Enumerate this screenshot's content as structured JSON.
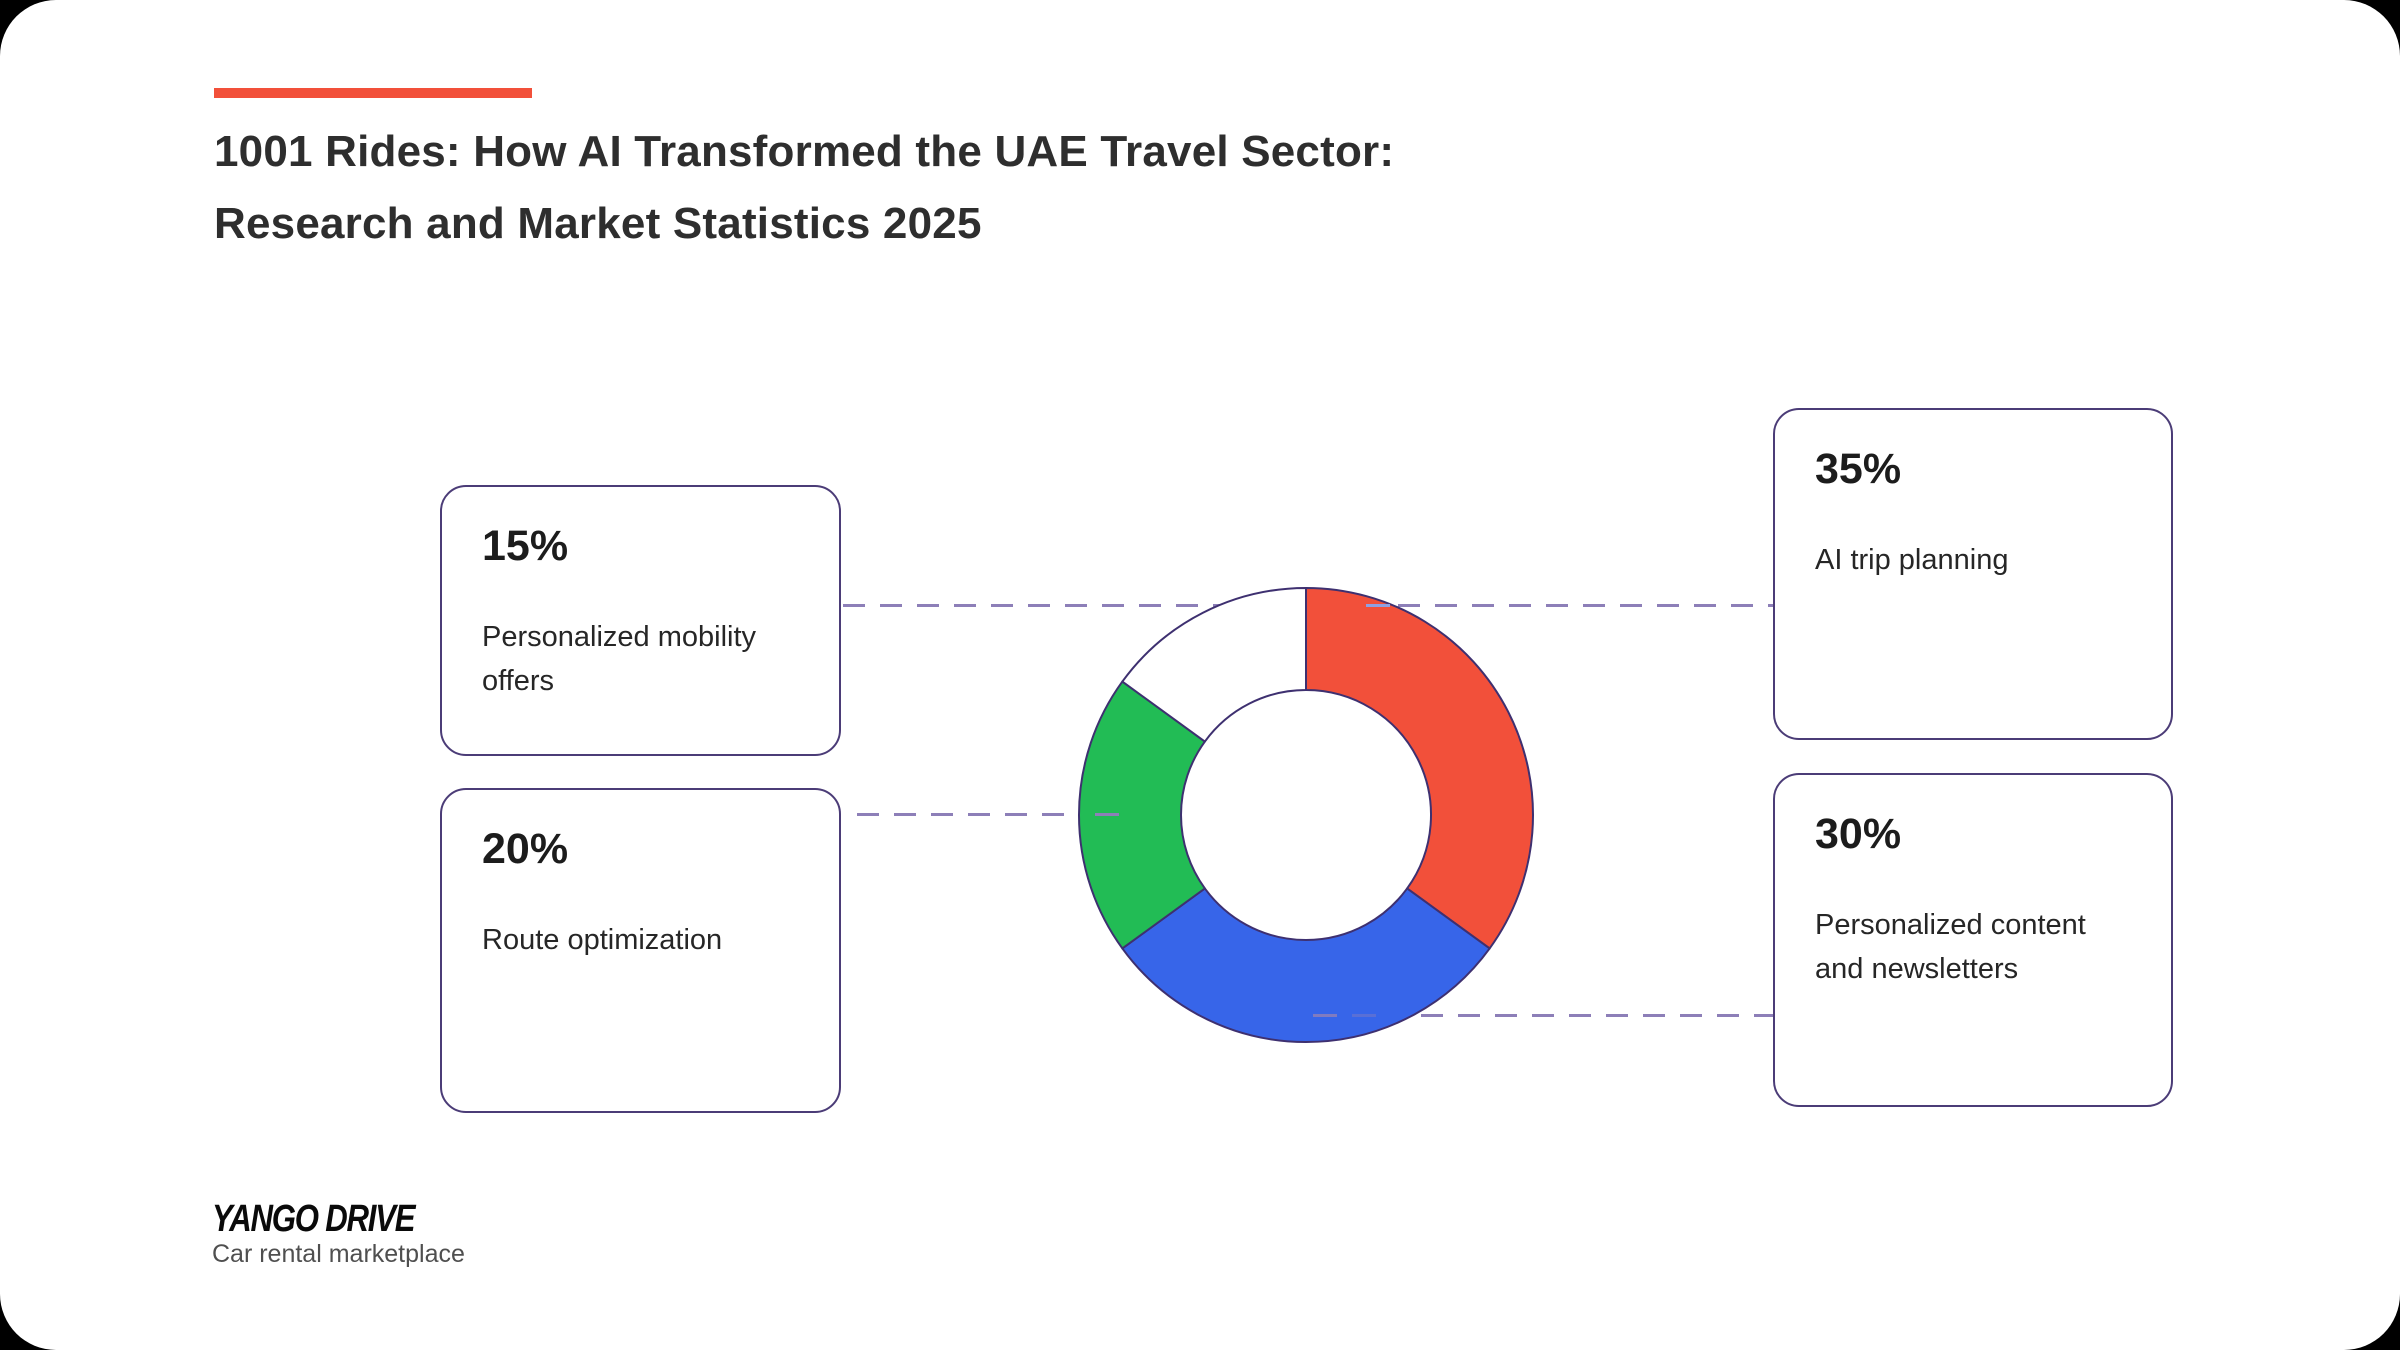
{
  "page": {
    "title_line1": "1001 Rides: How AI Transformed the UAE Travel Sector:",
    "title_line2": "Research and Market Statistics 2025"
  },
  "style": {
    "accent": "#F2503A",
    "outline": "#3E3070",
    "connector": "#8D7FB8",
    "card_border": "#4B3C77",
    "title_color": "#2E2E2E",
    "text": "#262626",
    "subtitle": "#4F4F4F",
    "background": "#000000",
    "canvas": "#FFFFFF"
  },
  "chart_data": {
    "type": "pie",
    "subtype": "donut",
    "title": "1001 Rides: How AI Transformed the UAE Travel Sector: Research and Market Statistics 2025",
    "unit": "%",
    "total": 100,
    "start_angle_deg": 0,
    "clockwise": true,
    "inner_radius": 125,
    "outer_radius": 227,
    "legend_position": "callout-cards",
    "segments": [
      {
        "label": "AI trip planning",
        "value": 35,
        "color": "#F2503A"
      },
      {
        "label": "Personalized content and newsletters",
        "value": 30,
        "color": "#3765E9"
      },
      {
        "label": "Route optimization",
        "value": 20,
        "color": "#22BC55"
      },
      {
        "label": "Personalized mobility offers",
        "value": 15,
        "color": "#FFFFFF"
      }
    ]
  },
  "cards": [
    {
      "percent": "15%",
      "label": "Personalized mobility offers"
    },
    {
      "percent": "20%",
      "label": "Route optimization"
    },
    {
      "percent": "35%",
      "label": "AI trip planning"
    },
    {
      "percent": "30%",
      "label": "Personalized content and newsletters"
    }
  ],
  "footer": {
    "brand": "YANGO DRIVE",
    "tagline": "Car rental marketplace"
  }
}
